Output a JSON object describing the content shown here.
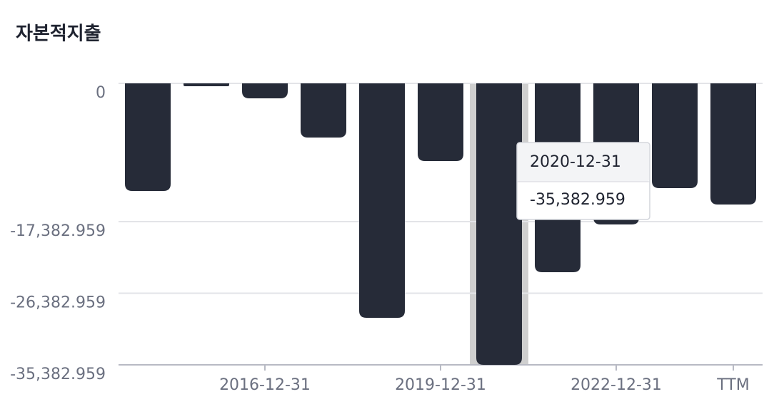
{
  "chart_data": {
    "type": "bar",
    "title": "자본적지출",
    "categories": [
      null,
      null,
      "2016-12-31",
      null,
      null,
      "2019-12-31",
      null,
      null,
      "2022-12-31",
      null,
      "TTM"
    ],
    "values": [
      -13527,
      -358,
      -1881,
      -6808,
      -29472,
      -9764,
      -35382.959,
      -23739,
      -17737,
      -13168,
      -15229
    ],
    "color": "#262b38",
    "ylim": [
      -35382.959,
      0
    ],
    "yticks": [
      0,
      {
        "value": -17382.959,
        "label": "-17,382.959"
      },
      {
        "value": -26382.959,
        "label": "-26,382.959"
      },
      {
        "value": -35382.959,
        "label": "-35,382.959"
      }
    ],
    "grid": true,
    "tooltip": {
      "title": "2020-12-31",
      "value": -35382.959,
      "label": "-35,382.959"
    }
  }
}
